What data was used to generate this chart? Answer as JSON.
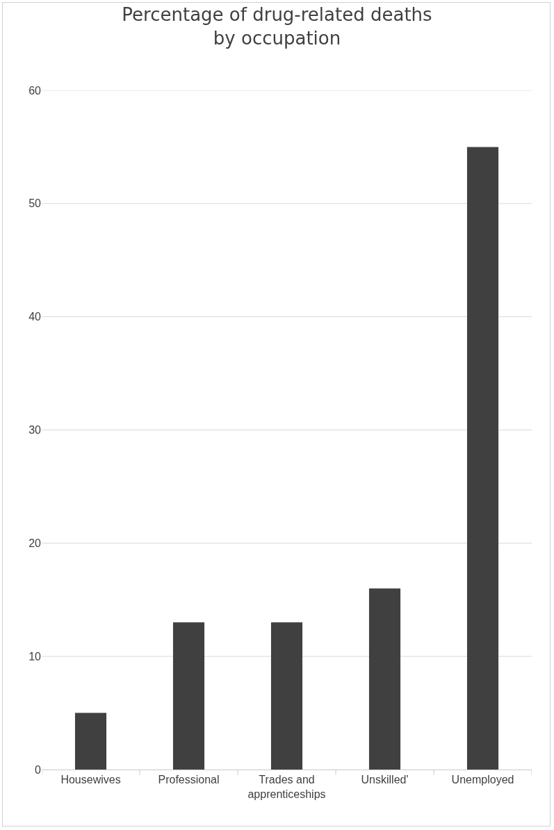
{
  "chart_data": {
    "type": "bar",
    "title": "Percentage of drug-related deaths by occupation",
    "categories": [
      "Housewives",
      "Professional",
      "Trades and apprenticeships",
      "Unskilled'",
      "Unemployed"
    ],
    "values": [
      5,
      13,
      13,
      16,
      55
    ],
    "color": "#404040",
    "ylim": [
      0,
      60
    ],
    "yticks": [
      0,
      10,
      20,
      30,
      40,
      50,
      60
    ],
    "grid": "y"
  }
}
